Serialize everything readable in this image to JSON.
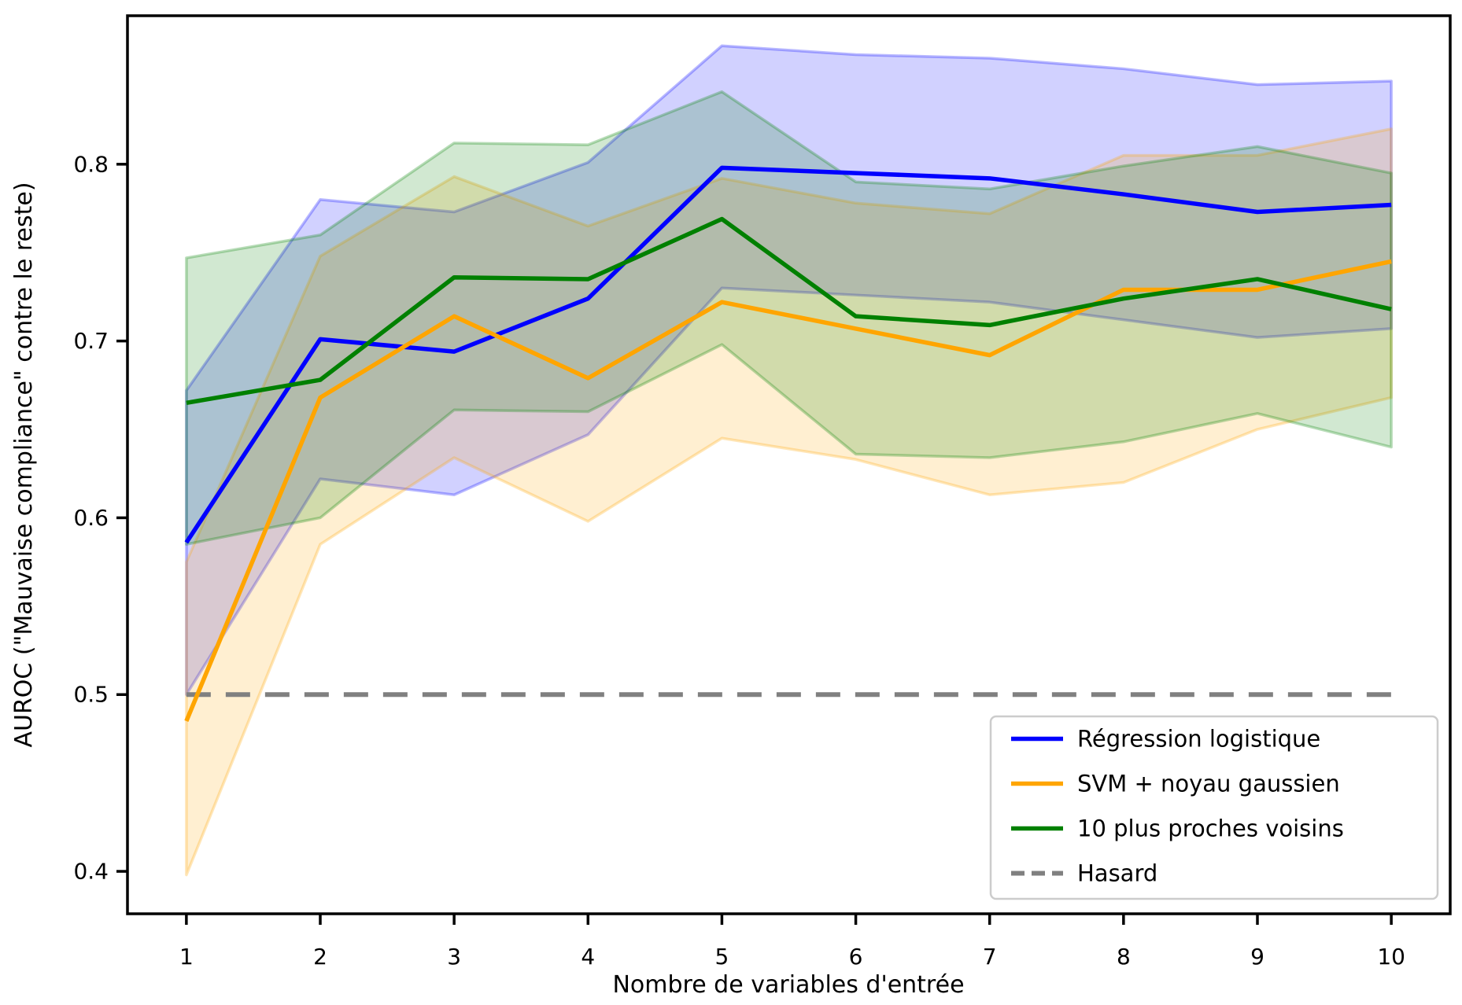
{
  "figure": {
    "background": "#ffffff",
    "frame_color": "#000000",
    "legend_border_color": "#cccccc"
  },
  "chart_data": {
    "type": "line",
    "title": "",
    "xlabel": "Nombre de variables d'entrée",
    "ylabel": "AUROC (\"Mauvaise compliance\" contre le reste)",
    "x": [
      1,
      2,
      3,
      4,
      5,
      6,
      7,
      8,
      9,
      10
    ],
    "xticks": [
      "1",
      "2",
      "3",
      "4",
      "5",
      "6",
      "7",
      "8",
      "9",
      "10"
    ],
    "yticks": [
      0.4,
      0.5,
      0.6,
      0.7,
      0.8
    ],
    "ytick_labels": [
      "0.4",
      "0.5",
      "0.6",
      "0.7",
      "0.8"
    ],
    "xlim": [
      0.56,
      10.44
    ],
    "ylim": [
      0.376,
      0.884
    ],
    "grid": false,
    "legend_position": "lower right",
    "series": [
      {
        "name": "Régression logistique",
        "color": "#0000ff",
        "style": "solid",
        "values": [
          0.586,
          0.701,
          0.694,
          0.724,
          0.798,
          0.795,
          0.792,
          0.783,
          0.773,
          0.777
        ],
        "band_lower": [
          0.5,
          0.622,
          0.613,
          0.647,
          0.73,
          0.726,
          0.722,
          0.712,
          0.702,
          0.707
        ],
        "band_upper": [
          0.672,
          0.78,
          0.773,
          0.801,
          0.867,
          0.862,
          0.86,
          0.854,
          0.845,
          0.847
        ]
      },
      {
        "name": "SVM + noyau gaussien",
        "color": "#ffa500",
        "style": "solid",
        "values": [
          0.485,
          0.668,
          0.714,
          0.679,
          0.722,
          0.707,
          0.692,
          0.729,
          0.729,
          0.745
        ],
        "band_lower": [
          0.398,
          0.585,
          0.634,
          0.598,
          0.645,
          0.633,
          0.613,
          0.62,
          0.65,
          0.668
        ],
        "band_upper": [
          0.575,
          0.748,
          0.793,
          0.765,
          0.792,
          0.778,
          0.772,
          0.805,
          0.805,
          0.82
        ]
      },
      {
        "name": "10 plus proches voisins",
        "color": "#008000",
        "style": "solid",
        "values": [
          0.665,
          0.678,
          0.736,
          0.735,
          0.769,
          0.714,
          0.709,
          0.724,
          0.735,
          0.718
        ],
        "band_lower": [
          0.585,
          0.6,
          0.661,
          0.66,
          0.698,
          0.636,
          0.634,
          0.643,
          0.659,
          0.64
        ],
        "band_upper": [
          0.747,
          0.76,
          0.812,
          0.811,
          0.841,
          0.79,
          0.786,
          0.799,
          0.81,
          0.795
        ]
      },
      {
        "name": "Hasard",
        "color": "#808080",
        "style": "dashed",
        "values": [
          0.5,
          0.5,
          0.5,
          0.5,
          0.5,
          0.5,
          0.5,
          0.5,
          0.5,
          0.5
        ]
      }
    ]
  }
}
